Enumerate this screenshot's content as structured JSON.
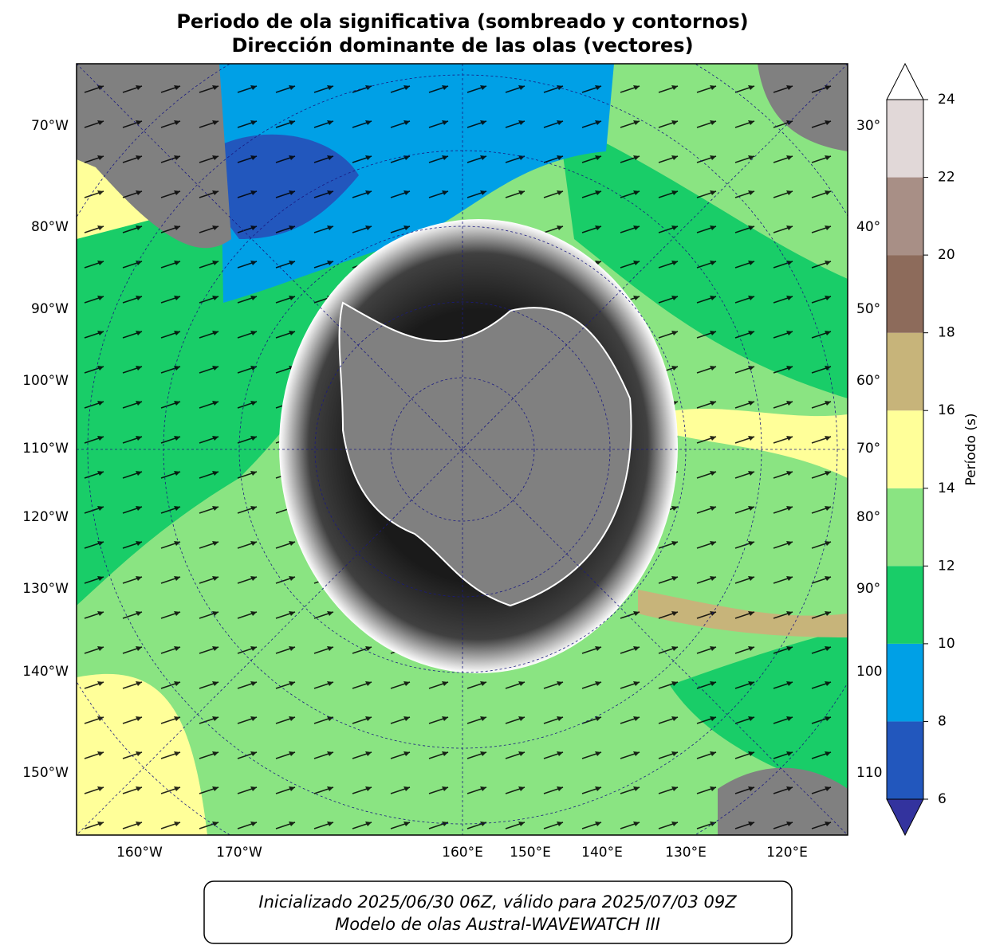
{
  "title": [
    "Periodo de ola significativa (sombreado y contornos)",
    "Dirección dominante de las olas (vectores)"
  ],
  "map": {
    "left_labels": [
      "70°W",
      "80°W",
      "90°W",
      "100°W",
      "110°W",
      "120°W",
      "130°W",
      "140°W",
      "150°W"
    ],
    "right_labels": [
      "30°",
      "40°",
      "50°",
      "60°",
      "70°",
      "80°",
      "90°",
      "100",
      "110"
    ],
    "bottom_labels": [
      "160°W",
      "170°W",
      "160°E",
      "150°E",
      "140°E",
      "130°E",
      "120°E"
    ]
  },
  "colorbar": {
    "label": "Período (s)",
    "lim": [
      6,
      24
    ],
    "ticks": [
      6,
      8,
      10,
      12,
      14,
      16,
      18,
      20,
      22,
      24
    ],
    "colors": [
      "#2257bd",
      "#00a0e6",
      "#19cd68",
      "#8ae482",
      "#ffff99",
      "#c7b47a",
      "#8d6b5b",
      "#a88f86",
      "#e1d8d8"
    ],
    "under_color": "#33339e",
    "over_color": "#ffffff"
  },
  "footer": [
    "Inicializado 2025/06/30 06Z, válido para 2025/07/03 09Z",
    "Modelo de olas Austral-WAVEWATCH III"
  ]
}
